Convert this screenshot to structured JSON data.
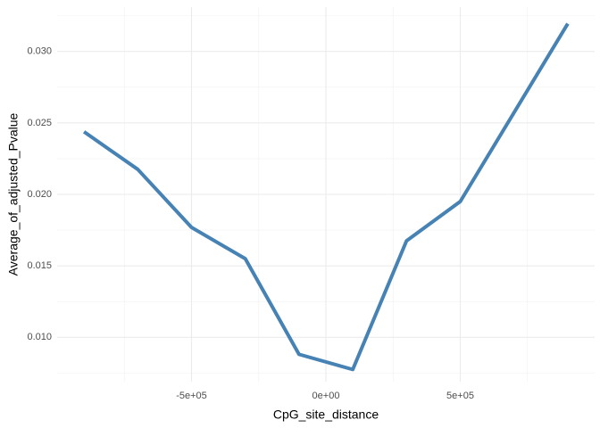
{
  "chart_data": {
    "type": "line",
    "x_label": "CpG_site_distance",
    "y_label": "Average_of_adjusted_Pvalue",
    "x": [
      -900000,
      -700000,
      -500000,
      -300000,
      -100000,
      100000,
      300000,
      500000,
      900000
    ],
    "series": [
      {
        "name": "Average_of_adjusted_Pvalue",
        "color": "#4682b4",
        "values": [
          0.02438,
          0.02175,
          0.01769,
          0.0155,
          0.00881,
          0.00775,
          0.01675,
          0.0195,
          0.03194
        ]
      }
    ],
    "xlim": [
      -1000000,
      1000000
    ],
    "ylim": [
      0.0069,
      0.0331
    ],
    "xticks": [
      {
        "value": -500000,
        "label": "-5e+05"
      },
      {
        "value": 0,
        "label": "0e+00"
      },
      {
        "value": 500000,
        "label": "5e+05"
      }
    ],
    "yticks": [
      {
        "value": 0.01,
        "label": "0.010"
      },
      0.015,
      {
        "value": 0.02,
        "label": "0.020"
      },
      0.025,
      {
        "value": 0.03,
        "label": "0.030"
      }
    ],
    "minor_xticks": [
      -750000,
      -250000,
      250000,
      750000
    ],
    "minor_yticks": [
      0.0075,
      0.0125,
      0.0175,
      0.0225,
      0.0275,
      0.0325
    ],
    "grid": true
  }
}
